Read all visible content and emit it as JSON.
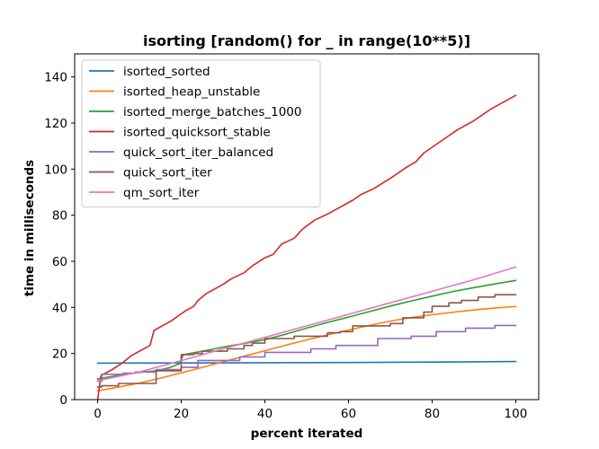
{
  "chart_data": {
    "type": "line",
    "title": "isorting [random() for _ in range(10**5)]",
    "xlabel": "percent iterated",
    "ylabel": "time in milliseconds",
    "xlim": [
      -5.5,
      105.5
    ],
    "ylim": [
      0,
      150
    ],
    "xticks": [
      0,
      20,
      40,
      60,
      80,
      100
    ],
    "yticks": [
      0,
      20,
      40,
      60,
      80,
      100,
      120,
      140
    ],
    "grid": false,
    "legend_position": "top-left",
    "series": [
      {
        "name": "isorted_sorted",
        "color": "#1f77b4",
        "step": false,
        "points": [
          [
            0,
            15.8
          ],
          [
            20,
            15.9
          ],
          [
            40,
            16.0
          ],
          [
            60,
            16.1
          ],
          [
            80,
            16.3
          ],
          [
            100,
            16.5
          ]
        ]
      },
      {
        "name": "isorted_heap_unstable",
        "color": "#ff7f0e",
        "step": false,
        "points": [
          [
            0,
            3.8
          ],
          [
            5,
            5.4
          ],
          [
            10,
            7.2
          ],
          [
            15,
            9.3
          ],
          [
            20,
            11.6
          ],
          [
            25,
            14.0
          ],
          [
            30,
            16.4
          ],
          [
            35,
            18.8
          ],
          [
            40,
            21.2
          ],
          [
            45,
            23.6
          ],
          [
            50,
            25.9
          ],
          [
            55,
            28.1
          ],
          [
            60,
            30.2
          ],
          [
            65,
            32.2
          ],
          [
            70,
            34.1
          ],
          [
            75,
            35.6
          ],
          [
            80,
            36.8
          ],
          [
            85,
            37.9
          ],
          [
            90,
            38.9
          ],
          [
            95,
            39.7
          ],
          [
            100,
            40.4
          ]
        ]
      },
      {
        "name": "isorted_merge_batches_1000",
        "color": "#2ca02c",
        "step": false,
        "points": [
          [
            0,
            9.0
          ],
          [
            5,
            10.5
          ],
          [
            10,
            11.8
          ],
          [
            14,
            12.5
          ],
          [
            17,
            13.8
          ],
          [
            19.5,
            15.5
          ],
          [
            20.5,
            19.5
          ],
          [
            25,
            21.0
          ],
          [
            30,
            22.8
          ],
          [
            35,
            24.3
          ],
          [
            40,
            26.0
          ],
          [
            45,
            28.4
          ],
          [
            50,
            31.0
          ],
          [
            55,
            33.5
          ],
          [
            60,
            35.8
          ],
          [
            65,
            38.2
          ],
          [
            70,
            40.6
          ],
          [
            75,
            42.8
          ],
          [
            80,
            44.9
          ],
          [
            85,
            46.9
          ],
          [
            90,
            48.6
          ],
          [
            95,
            50.2
          ],
          [
            100,
            51.7
          ]
        ]
      },
      {
        "name": "isorted_quicksort_stable",
        "color": "#d62728",
        "step": false,
        "points": [
          [
            0,
            0
          ],
          [
            0.8,
            10.5
          ],
          [
            3,
            12.5
          ],
          [
            6,
            16
          ],
          [
            8,
            19
          ],
          [
            10,
            21
          ],
          [
            12.5,
            23.5
          ],
          [
            13.5,
            30
          ],
          [
            15,
            31.5
          ],
          [
            17.5,
            34
          ],
          [
            19,
            36
          ],
          [
            21,
            38.5
          ],
          [
            23,
            40.5
          ],
          [
            24,
            43
          ],
          [
            26,
            46
          ],
          [
            28,
            48
          ],
          [
            30,
            50
          ],
          [
            32,
            52.5
          ],
          [
            35,
            55
          ],
          [
            37,
            58
          ],
          [
            40,
            61.5
          ],
          [
            42,
            63
          ],
          [
            44,
            67.5
          ],
          [
            47,
            70
          ],
          [
            49,
            74
          ],
          [
            52,
            78
          ],
          [
            55,
            80.5
          ],
          [
            58,
            83.5
          ],
          [
            61,
            86.5
          ],
          [
            63,
            89
          ],
          [
            66,
            91.5
          ],
          [
            70,
            96
          ],
          [
            74,
            101
          ],
          [
            76,
            103
          ],
          [
            78,
            107
          ],
          [
            82,
            112
          ],
          [
            86,
            117
          ],
          [
            90,
            121
          ],
          [
            94,
            126
          ],
          [
            98,
            130
          ],
          [
            100,
            132
          ]
        ]
      },
      {
        "name": "quick_sort_iter_balanced",
        "color": "#9467bd",
        "step": true,
        "points": [
          [
            0,
            8
          ],
          [
            1,
            11
          ],
          [
            6,
            11.5
          ],
          [
            9,
            12
          ],
          [
            14,
            13
          ],
          [
            20,
            14
          ],
          [
            24,
            17
          ],
          [
            34,
            18.5
          ],
          [
            40,
            20.5
          ],
          [
            51,
            22
          ],
          [
            57,
            23.5
          ],
          [
            67,
            26.5
          ],
          [
            75,
            27.5
          ],
          [
            81,
            29.5
          ],
          [
            88,
            31
          ],
          [
            95,
            32.2
          ],
          [
            100,
            32.2
          ]
        ]
      },
      {
        "name": "quick_sort_iter",
        "color": "#8c564b",
        "step": true,
        "points": [
          [
            0,
            5.5
          ],
          [
            1,
            6
          ],
          [
            5,
            7
          ],
          [
            8,
            7
          ],
          [
            14,
            12.5
          ],
          [
            20,
            19.5
          ],
          [
            23,
            20
          ],
          [
            25,
            21
          ],
          [
            31,
            22
          ],
          [
            35,
            23.5
          ],
          [
            37,
            24.5
          ],
          [
            40,
            26.5
          ],
          [
            43,
            26.5
          ],
          [
            47,
            27.5
          ],
          [
            55,
            29
          ],
          [
            58,
            29.5
          ],
          [
            61,
            32
          ],
          [
            70,
            33
          ],
          [
            73,
            35.5
          ],
          [
            78,
            38
          ],
          [
            80,
            40.5
          ],
          [
            84,
            42
          ],
          [
            87,
            43
          ],
          [
            91,
            44.5
          ],
          [
            95,
            45.5
          ],
          [
            100,
            45.5
          ]
        ]
      },
      {
        "name": "qm_sort_iter",
        "color": "#e377c2",
        "step": false,
        "points": [
          [
            0,
            8.2
          ],
          [
            10,
            12.0
          ],
          [
            20,
            16.9
          ],
          [
            30,
            22.0
          ],
          [
            40,
            27.0
          ],
          [
            50,
            32.0
          ],
          [
            60,
            37.0
          ],
          [
            70,
            42.0
          ],
          [
            80,
            47.0
          ],
          [
            90,
            52.0
          ],
          [
            100,
            57.5
          ]
        ]
      }
    ]
  }
}
